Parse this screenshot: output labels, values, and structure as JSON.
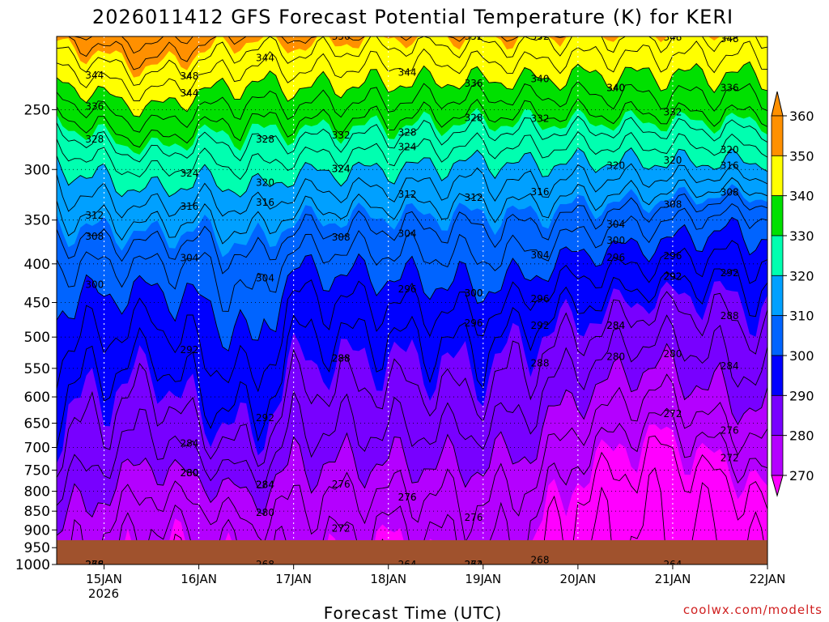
{
  "chart_data": {
    "type": "heatmap",
    "title": "2026011412 GFS Forecast Potential Temperature (K) for KERI",
    "xlabel": "Forecast Time (UTC)",
    "credit": "coolwx.com/modelts",
    "x_ticks": [
      "15JAN",
      "16JAN",
      "17JAN",
      "18JAN",
      "19JAN",
      "20JAN",
      "21JAN",
      "22JAN"
    ],
    "x_subtick": "2026",
    "x_range_days": [
      14.5,
      22.0
    ],
    "y_ticks": [
      250,
      300,
      350,
      400,
      450,
      500,
      550,
      600,
      650,
      700,
      750,
      800,
      850,
      900,
      950,
      1000
    ],
    "y_range_hpa": [
      200,
      1000
    ],
    "y_scale": "log-pressure",
    "colorbar": {
      "levels": [
        270,
        280,
        290,
        300,
        310,
        320,
        330,
        340,
        350,
        360
      ],
      "colors": [
        "#ff00ff",
        "#b400ff",
        "#7800ff",
        "#0000ff",
        "#0064ff",
        "#00a0ff",
        "#00ffb0",
        "#00e000",
        "#ffff00",
        "#ff9000",
        "#ff9000"
      ],
      "extend": "both"
    },
    "contour_labels": [
      "344",
      "356",
      "352",
      "348",
      "344",
      "352",
      "348",
      "344",
      "328",
      "340",
      "348",
      "344",
      "340",
      "336",
      "332",
      "340",
      "336",
      "328",
      "328",
      "332",
      "320",
      "336",
      "320",
      "324",
      "324",
      "320",
      "328",
      "324",
      "332",
      "316",
      "324",
      "316",
      "320",
      "316",
      "312",
      "308",
      "316",
      "312",
      "304",
      "308",
      "304",
      "300",
      "312",
      "308",
      "304",
      "308",
      "304",
      "300",
      "296",
      "304",
      "300",
      "292",
      "292",
      "296",
      "296",
      "300",
      "288",
      "296",
      "292",
      "292",
      "288",
      "284",
      "284",
      "296",
      "292",
      "280",
      "276",
      "280",
      "276",
      "288",
      "284",
      "268",
      "276",
      "292",
      "288",
      "284",
      "272",
      "272",
      "284",
      "276",
      "280",
      "280",
      "264",
      "284",
      "276",
      "272",
      "268",
      "276",
      "280",
      "264",
      "272",
      "268",
      "276",
      "264"
    ],
    "terrain_color": "#a0522d",
    "grid": "dotted"
  }
}
